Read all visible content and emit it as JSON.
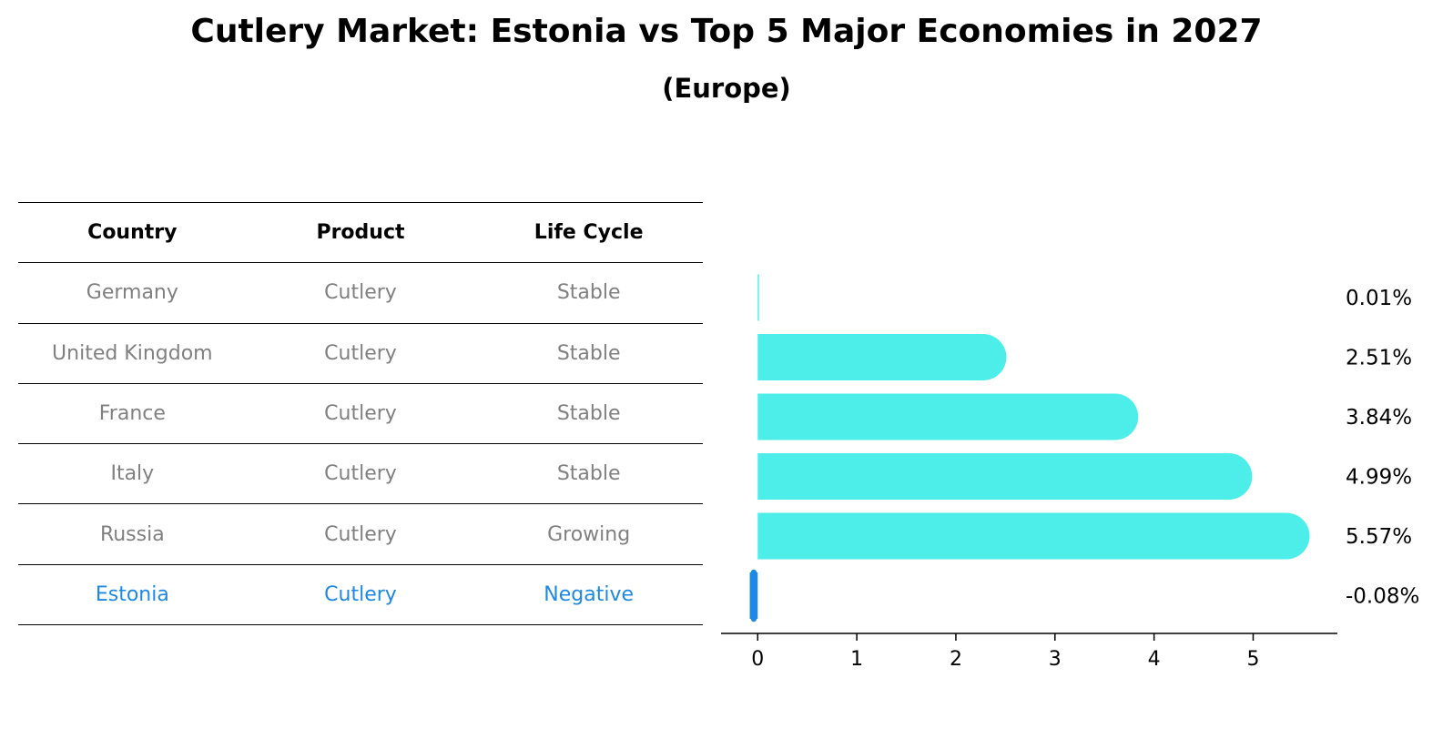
{
  "title": "Cutlery Market: Estonia vs Top 5 Major Economies in 2027",
  "subtitle": "(Europe)",
  "table": {
    "headers": [
      "Country",
      "Product",
      "Life Cycle"
    ],
    "rows": [
      {
        "country": "Germany",
        "product": "Cutlery",
        "life_cycle": "Stable",
        "highlight": false
      },
      {
        "country": "United Kingdom",
        "product": "Cutlery",
        "life_cycle": "Stable",
        "highlight": false
      },
      {
        "country": "France",
        "product": "Cutlery",
        "life_cycle": "Stable",
        "highlight": false
      },
      {
        "country": "Italy",
        "product": "Cutlery",
        "life_cycle": "Stable",
        "highlight": false
      },
      {
        "country": "Russia",
        "product": "Cutlery",
        "life_cycle": "Growing",
        "highlight": false
      },
      {
        "country": "Estonia",
        "product": "Cutlery",
        "life_cycle": "Negative",
        "highlight": true
      }
    ]
  },
  "chart_data": {
    "type": "bar",
    "orientation": "horizontal",
    "categories": [
      "Germany",
      "United Kingdom",
      "France",
      "Italy",
      "Russia",
      "Estonia"
    ],
    "values": [
      0.01,
      2.51,
      3.84,
      4.99,
      5.57,
      -0.08
    ],
    "value_labels": [
      "0.01%",
      "2.51%",
      "3.84%",
      "4.99%",
      "5.57%",
      "-0.08%"
    ],
    "xticks": [
      0,
      1,
      2,
      3,
      4,
      5
    ],
    "xlim": [
      -0.37,
      5.85
    ],
    "bar_color": "#4deeea",
    "highlight_color": "#1e88e5",
    "grid": false
  }
}
